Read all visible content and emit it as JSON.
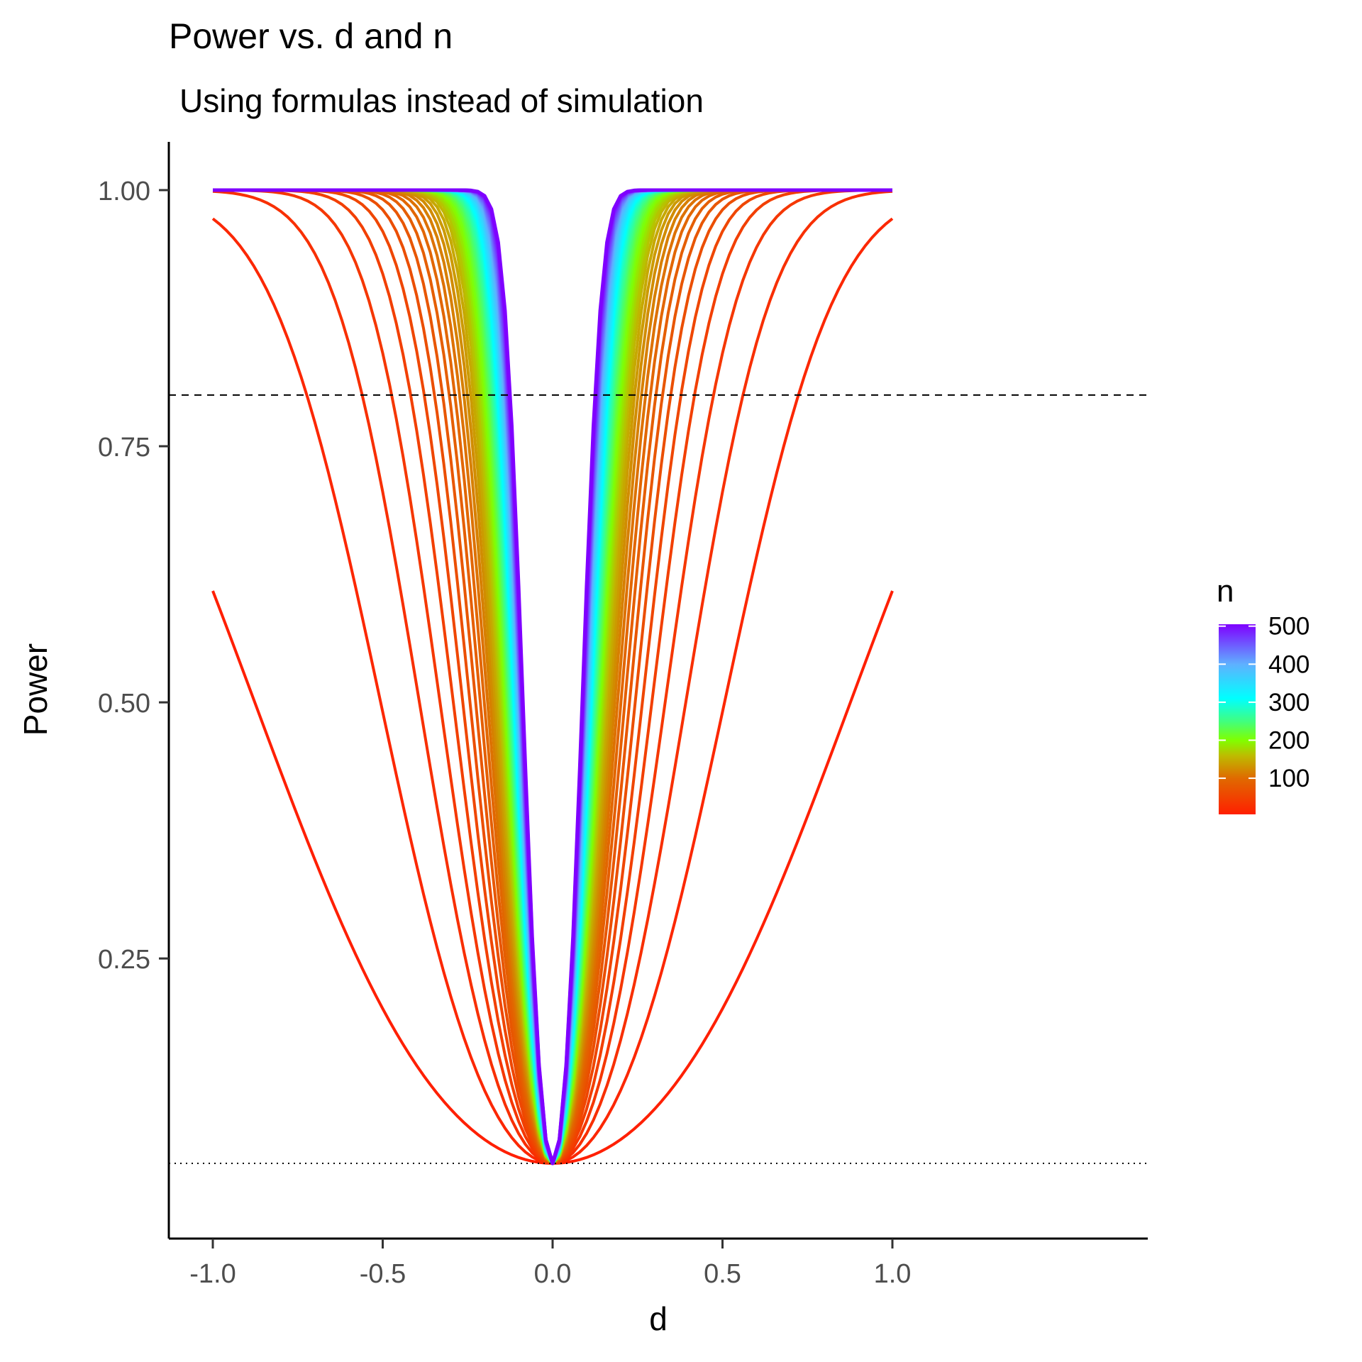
{
  "chart_data": {
    "type": "line",
    "title": "Power vs. d and n",
    "subtitle": "Using formulas instead of simulation",
    "xlabel": "d",
    "ylabel": "Power",
    "xlim": [
      -1.1,
      1.1
    ],
    "ylim": [
      0.0,
      1.05
    ],
    "x_ticks": [
      -1.0,
      -0.5,
      0.0,
      0.5,
      1.0
    ],
    "x_tick_labels": [
      "-1.0",
      "-0.5",
      "0.0",
      "0.5",
      "1.0"
    ],
    "y_ticks": [
      0.25,
      0.5,
      0.75,
      1.0
    ],
    "y_tick_labels": [
      "0.25",
      "0.50",
      "0.75",
      "1.00"
    ],
    "grid": false,
    "x_range": [
      -1.0,
      1.0
    ],
    "x_step": 0.02,
    "alpha": 0.05,
    "n_values": [
      5,
      15,
      25,
      35,
      45,
      55,
      65,
      75,
      85,
      95,
      105,
      115,
      125,
      135,
      145,
      155,
      165,
      175,
      185,
      195,
      205,
      215,
      225,
      235,
      245,
      255,
      265,
      275,
      285,
      295,
      305,
      315,
      325,
      335,
      345,
      355,
      365,
      375,
      385,
      395,
      405,
      415,
      425,
      435,
      445,
      455,
      465,
      475,
      485,
      495,
      505
    ],
    "reference_lines": [
      {
        "axis": "y",
        "value": 0.8,
        "style": "dashed",
        "color": "#000000"
      },
      {
        "axis": "y",
        "value": 0.05,
        "style": "dotted",
        "color": "#000000"
      }
    ],
    "legend": {
      "title": "n",
      "placement": "right",
      "type": "colorbar",
      "range": [
        5,
        505
      ],
      "breaks": [
        100,
        200,
        300,
        400,
        500
      ],
      "break_labels": [
        "100",
        "200",
        "300",
        "400",
        "500"
      ],
      "color_stops": [
        {
          "value": 5,
          "color": "#ff1f00"
        },
        {
          "value": 100,
          "color": "#e06a00"
        },
        {
          "value": 160,
          "color": "#bdbc00"
        },
        {
          "value": 200,
          "color": "#80ff00"
        },
        {
          "value": 250,
          "color": "#40ff80"
        },
        {
          "value": 310,
          "color": "#00ffff"
        },
        {
          "value": 400,
          "color": "#5fb0ff"
        },
        {
          "value": 505,
          "color": "#7f00ff"
        }
      ]
    }
  }
}
